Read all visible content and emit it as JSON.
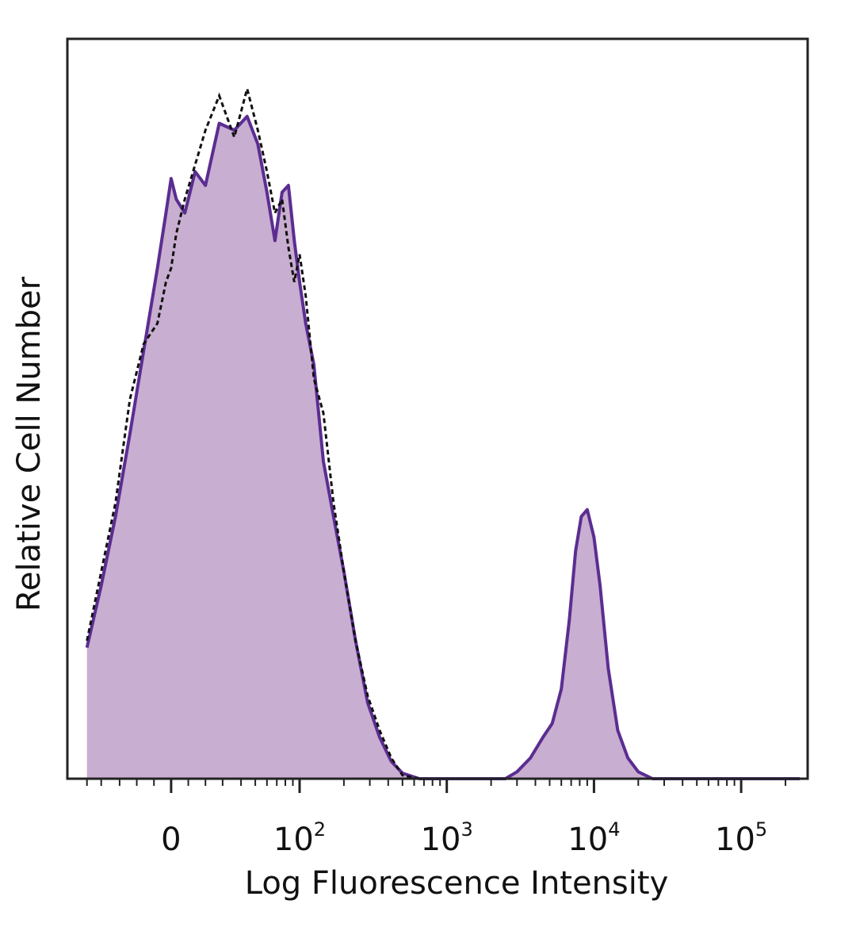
{
  "chart_data": {
    "type": "area",
    "title": "",
    "xlabel": "Log Fluorescence Intensity",
    "ylabel": "Relative Cell Number",
    "x_scale": "biexponential",
    "xlim": [
      -60,
      250000
    ],
    "ylim": [
      0,
      1.0
    ],
    "grid": false,
    "legend": "none",
    "x_ticks": [
      {
        "value": 0,
        "base": "0",
        "exp": ""
      },
      {
        "value": 100,
        "base": "10",
        "exp": "2"
      },
      {
        "value": 1000,
        "base": "10",
        "exp": "3"
      },
      {
        "value": 10000,
        "base": "10",
        "exp": "4"
      },
      {
        "value": 100000,
        "base": "10",
        "exp": "5"
      }
    ],
    "series": [
      {
        "style": "filled-solid",
        "color": "#5b2d91",
        "fill": "#c8aed0",
        "x": [
          -50,
          -40,
          -32,
          -24,
          -16,
          -8,
          -3,
          0,
          3,
          8,
          14,
          20,
          28,
          36,
          44,
          52,
          60,
          68,
          76,
          84,
          92,
          100,
          110,
          125,
          145,
          170,
          200,
          240,
          290,
          350,
          420,
          500,
          650,
          900,
          1300,
          1900,
          2500,
          3000,
          3700,
          4500,
          5200,
          6000,
          6800,
          7500,
          8200,
          9000,
          10000,
          11000,
          12500,
          14500,
          17000,
          20000,
          25000,
          40000,
          100000,
          250000
        ],
        "y": [
          0.19,
          0.28,
          0.38,
          0.5,
          0.62,
          0.74,
          0.82,
          0.87,
          0.84,
          0.82,
          0.88,
          0.86,
          0.95,
          0.94,
          0.96,
          0.92,
          0.85,
          0.78,
          0.85,
          0.86,
          0.78,
          0.72,
          0.66,
          0.6,
          0.46,
          0.38,
          0.3,
          0.2,
          0.11,
          0.06,
          0.025,
          0.008,
          0.0,
          0.0,
          0.0,
          0.0,
          0.0,
          0.01,
          0.03,
          0.06,
          0.08,
          0.13,
          0.23,
          0.33,
          0.38,
          0.39,
          0.35,
          0.28,
          0.16,
          0.07,
          0.03,
          0.01,
          0.0,
          0.0,
          0.0,
          0.0
        ]
      },
      {
        "style": "dashed-outline",
        "color": "#111111",
        "x": [
          -50,
          -40,
          -32,
          -24,
          -16,
          -8,
          -3,
          0,
          3,
          8,
          14,
          20,
          28,
          36,
          44,
          52,
          60,
          68,
          76,
          84,
          92,
          100,
          110,
          125,
          145,
          170,
          200,
          240,
          290,
          350,
          420,
          500,
          650,
          900,
          250000
        ],
        "y": [
          0.2,
          0.3,
          0.4,
          0.55,
          0.63,
          0.66,
          0.72,
          0.74,
          0.79,
          0.84,
          0.89,
          0.94,
          0.99,
          0.93,
          1.0,
          0.94,
          0.88,
          0.82,
          0.84,
          0.77,
          0.72,
          0.76,
          0.7,
          0.58,
          0.53,
          0.4,
          0.3,
          0.2,
          0.12,
          0.07,
          0.03,
          0.005,
          0.0,
          0.0,
          0.0
        ]
      }
    ]
  }
}
